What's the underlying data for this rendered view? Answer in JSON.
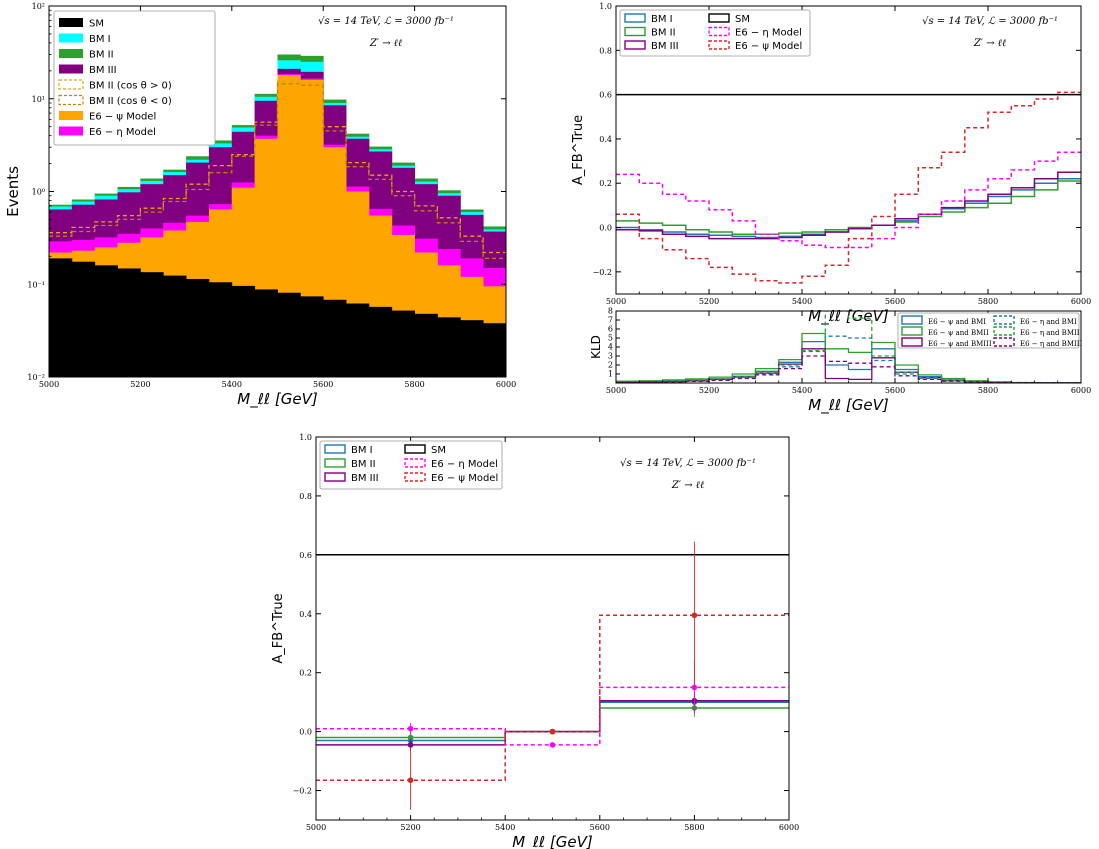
{
  "chart_data": [
    {
      "id": "events",
      "type": "bar",
      "stacked": true,
      "yscale": "log",
      "xlim": [
        5000,
        6000
      ],
      "ylim": [
        0.01,
        100
      ],
      "xlabel": "M_ℓℓ [GeV]",
      "ylabel": "Events",
      "annotation": [
        "√s = 14 TeV, ℒ = 3000 fb⁻¹",
        "Z′ → ℓℓ"
      ],
      "x_ticks": [
        "5000",
        "5200",
        "5400",
        "5600",
        "5800",
        "6000"
      ],
      "y_ticks": [
        "10⁻²",
        "10⁻¹",
        "10⁰",
        "10¹",
        "10²"
      ],
      "legend_position": "top-left",
      "bin_edges": [
        5000,
        5050,
        5100,
        5150,
        5200,
        5250,
        5300,
        5350,
        5400,
        5450,
        5500,
        5550,
        5600,
        5650,
        5700,
        5750,
        5800,
        5850,
        5900,
        5950,
        6000
      ],
      "series": [
        {
          "name": "SM",
          "color": "#000000",
          "cumulative": [
            0.19,
            0.175,
            0.16,
            0.148,
            0.135,
            0.124,
            0.114,
            0.105,
            0.096,
            0.088,
            0.081,
            0.074,
            0.068,
            0.062,
            0.057,
            0.052,
            0.048,
            0.044,
            0.041,
            0.038
          ]
        },
        {
          "name": "E6 − ψ Model",
          "color": "#ffa500",
          "cumulative": [
            0.22,
            0.23,
            0.25,
            0.28,
            0.32,
            0.38,
            0.47,
            0.64,
            1.1,
            3.7,
            18,
            16,
            3.0,
            1.0,
            0.55,
            0.34,
            0.22,
            0.16,
            0.12,
            0.095
          ]
        },
        {
          "name": "E6 − η Model",
          "color": "#ff00ff",
          "cumulative": [
            0.29,
            0.3,
            0.32,
            0.35,
            0.4,
            0.46,
            0.55,
            0.73,
            1.25,
            4.0,
            18.5,
            16.5,
            3.2,
            1.13,
            0.65,
            0.43,
            0.31,
            0.24,
            0.19,
            0.15
          ]
        },
        {
          "name": "BM III",
          "color": "#800080",
          "cumulative": [
            0.64,
            0.72,
            0.82,
            0.98,
            1.2,
            1.5,
            2.05,
            3.0,
            4.4,
            9.5,
            21,
            19.5,
            8.5,
            3.7,
            2.7,
            1.8,
            1.2,
            0.9,
            0.56,
            0.37
          ]
        },
        {
          "name": "BM I",
          "color": "#00ffff",
          "cumulative": [
            0.69,
            0.78,
            0.9,
            1.06,
            1.3,
            1.62,
            2.2,
            3.3,
            4.9,
            10.5,
            26,
            25,
            9.0,
            3.9,
            2.85,
            1.9,
            1.28,
            0.96,
            0.6,
            0.39
          ]
        },
        {
          "name": "BM II",
          "color": "#2ca02c",
          "cumulative": [
            0.72,
            0.82,
            0.95,
            1.12,
            1.38,
            1.72,
            2.4,
            3.55,
            5.2,
            11.3,
            30,
            29,
            9.8,
            4.2,
            3.05,
            2.05,
            1.38,
            1.03,
            0.64,
            0.42
          ]
        }
      ],
      "dashed_series": [
        {
          "name": "BM II (cos θ > 0)",
          "color": "#e8a020",
          "values": [
            0.36,
            0.41,
            0.47,
            0.55,
            0.66,
            0.84,
            1.2,
            1.9,
            2.5,
            5.6,
            15.5,
            15,
            5.0,
            2.05,
            1.5,
            1.0,
            0.7,
            0.52,
            0.33,
            0.22
          ]
        },
        {
          "name": "BM II (cos θ < 0)",
          "color": "#b8860b",
          "values": [
            0.33,
            0.37,
            0.43,
            0.5,
            0.6,
            0.78,
            1.05,
            1.6,
            2.4,
            5.2,
            14.5,
            14,
            4.5,
            1.85,
            1.35,
            0.9,
            0.62,
            0.46,
            0.29,
            0.19
          ]
        }
      ]
    },
    {
      "id": "afb",
      "type": "line",
      "step": true,
      "xlim": [
        5000,
        6000
      ],
      "ylim": [
        -0.3,
        1.0
      ],
      "xlabel": "M_ℓℓ [GeV]",
      "ylabel": "A_FB^True",
      "annotation": [
        "√s = 14 TeV, ℒ = 3000 fb⁻¹",
        "Z′ → ℓℓ"
      ],
      "x_ticks": [
        "5000",
        "5200",
        "5400",
        "5600",
        "5800",
        "6000"
      ],
      "y_ticks": [
        "−0.2",
        "0.0",
        "0.2",
        "0.4",
        "0.6",
        "0.8",
        "1.0"
      ],
      "legend_position": "top-left",
      "bin_edges": [
        5000,
        5050,
        5100,
        5150,
        5200,
        5250,
        5300,
        5350,
        5400,
        5450,
        5500,
        5550,
        5600,
        5650,
        5700,
        5750,
        5800,
        5850,
        5900,
        5950,
        6000
      ],
      "series": [
        {
          "name": "BM I",
          "color": "#1f77b4",
          "dashed": false,
          "values": [
            0.0,
            -0.01,
            -0.02,
            -0.03,
            -0.035,
            -0.04,
            -0.045,
            -0.04,
            -0.03,
            -0.02,
            -0.005,
            0.01,
            0.03,
            0.06,
            0.085,
            0.11,
            0.14,
            0.17,
            0.2,
            0.22
          ]
        },
        {
          "name": "BM II",
          "color": "#2ca02c",
          "dashed": false,
          "values": [
            0.03,
            0.02,
            0.01,
            -0.01,
            -0.02,
            -0.03,
            -0.03,
            -0.025,
            -0.02,
            -0.01,
            0.0,
            0.01,
            0.025,
            0.05,
            0.07,
            0.09,
            0.11,
            0.14,
            0.17,
            0.21
          ]
        },
        {
          "name": "BM III",
          "color": "#800080",
          "dashed": false,
          "values": [
            -0.01,
            -0.015,
            -0.03,
            -0.04,
            -0.05,
            -0.05,
            -0.05,
            -0.045,
            -0.035,
            -0.02,
            -0.005,
            0.01,
            0.04,
            0.06,
            0.09,
            0.12,
            0.15,
            0.18,
            0.22,
            0.25
          ]
        },
        {
          "name": "SM",
          "color": "#000000",
          "dashed": false,
          "values": [
            0.6,
            0.6,
            0.6,
            0.6,
            0.6,
            0.6,
            0.6,
            0.6,
            0.6,
            0.6,
            0.6,
            0.6,
            0.6,
            0.6,
            0.6,
            0.6,
            0.6,
            0.6,
            0.6,
            0.6
          ]
        },
        {
          "name": "E6 − η Model",
          "color": "#ff00ff",
          "dashed": true,
          "values": [
            0.24,
            0.2,
            0.15,
            0.12,
            0.08,
            0.03,
            -0.03,
            -0.06,
            -0.08,
            -0.09,
            -0.09,
            -0.05,
            0.0,
            0.06,
            0.12,
            0.17,
            0.22,
            0.26,
            0.3,
            0.34
          ]
        },
        {
          "name": "E6 − ψ Model",
          "color": "#d62728",
          "dashed": true,
          "values": [
            0.06,
            -0.05,
            -0.1,
            -0.14,
            -0.18,
            -0.21,
            -0.24,
            -0.25,
            -0.22,
            -0.17,
            -0.05,
            0.05,
            0.15,
            0.27,
            0.34,
            0.45,
            0.52,
            0.55,
            0.58,
            0.61
          ]
        }
      ]
    },
    {
      "id": "kld",
      "type": "line",
      "step": true,
      "xlim": [
        5000,
        6000
      ],
      "ylim": [
        0,
        8
      ],
      "xlabel": "M_ℓℓ [GeV]",
      "ylabel": "KLD",
      "x_ticks": [
        "5000",
        "5200",
        "5400",
        "5600",
        "5800",
        "6000"
      ],
      "y_ticks": [
        "1",
        "2",
        "3",
        "4",
        "5",
        "6",
        "7",
        "8"
      ],
      "legend_position": "top-right",
      "bin_edges": [
        5000,
        5050,
        5100,
        5150,
        5200,
        5250,
        5300,
        5350,
        5400,
        5450,
        5500,
        5550,
        5600,
        5650,
        5700,
        5750,
        5800,
        5850,
        5900,
        5950,
        6000
      ],
      "series": [
        {
          "name": "E6 − ψ and BMI",
          "color": "#1f77b4",
          "dashed": false,
          "values": [
            0.1,
            0.15,
            0.2,
            0.3,
            0.45,
            0.75,
            1.3,
            2.3,
            4.6,
            2.0,
            1.5,
            3.8,
            1.5,
            0.7,
            0.35,
            0.2,
            0.1,
            0.05,
            0.02,
            0.01
          ]
        },
        {
          "name": "E6 − ψ and BMII",
          "color": "#2ca02c",
          "dashed": false,
          "values": [
            0.2,
            0.25,
            0.35,
            0.45,
            0.65,
            1.0,
            1.6,
            2.6,
            5.5,
            3.8,
            3.4,
            4.5,
            2.0,
            0.9,
            0.5,
            0.25,
            0.12,
            0.06,
            0.03,
            0.01
          ]
        },
        {
          "name": "E6 − ψ and BMIII",
          "color": "#800080",
          "dashed": false,
          "values": [
            0.08,
            0.12,
            0.16,
            0.25,
            0.4,
            0.65,
            1.1,
            2.1,
            3.8,
            0.5,
            0.4,
            2.8,
            1.2,
            0.6,
            0.3,
            0.15,
            0.08,
            0.04,
            0.02,
            0.01
          ]
        },
        {
          "name": "E6 − η and BMI",
          "color": "#1f77b4",
          "dashed": true,
          "values": [
            0.05,
            0.1,
            0.15,
            0.22,
            0.35,
            0.6,
            1.0,
            1.8,
            3.5,
            5.2,
            5.0,
            2.5,
            1.0,
            0.5,
            0.25,
            0.12,
            0.06,
            0.03,
            0.01,
            0.01
          ]
        },
        {
          "name": "E6 − η and BMII",
          "color": "#2ca02c",
          "dashed": true,
          "values": [
            0.08,
            0.12,
            0.2,
            0.3,
            0.45,
            0.7,
            1.2,
            2.0,
            3.6,
            8.0,
            7.2,
            3.0,
            1.2,
            0.6,
            0.3,
            0.15,
            0.07,
            0.03,
            0.02,
            0.01
          ]
        },
        {
          "name": "E6 − η and BMIII",
          "color": "#800080",
          "dashed": true,
          "values": [
            0.04,
            0.08,
            0.12,
            0.18,
            0.3,
            0.5,
            0.9,
            1.6,
            3.0,
            2.4,
            2.2,
            1.8,
            0.8,
            0.4,
            0.2,
            0.1,
            0.05,
            0.02,
            0.01,
            0.01
          ]
        }
      ]
    },
    {
      "id": "afb_wide",
      "type": "line",
      "step": true,
      "error_bars": true,
      "xlim": [
        5000,
        6000
      ],
      "ylim": [
        -0.3,
        1.0
      ],
      "xlabel": "M_ℓℓ [GeV]",
      "ylabel": "A_FB^True",
      "annotation": [
        "√s = 14 TeV, ℒ = 3000 fb⁻¹",
        "Z′ → ℓℓ"
      ],
      "x_ticks": [
        "5000",
        "5200",
        "5400",
        "5600",
        "5800",
        "6000"
      ],
      "y_ticks": [
        "−0.2",
        "0.0",
        "0.2",
        "0.4",
        "0.6",
        "0.8",
        "1.0"
      ],
      "legend_position": "top-left",
      "bin_edges": [
        5000,
        5400,
        5600,
        6000
      ],
      "bin_centers": [
        5200,
        5500,
        5800
      ],
      "series": [
        {
          "name": "BM I",
          "color": "#1f77b4",
          "dashed": false,
          "values": [
            -0.03,
            0.0,
            0.1
          ],
          "errors": [
            0.02,
            0.0,
            0.03
          ]
        },
        {
          "name": "BM II",
          "color": "#2ca02c",
          "dashed": false,
          "values": [
            -0.02,
            0.0,
            0.08
          ],
          "errors": [
            0.02,
            0.0,
            0.03
          ]
        },
        {
          "name": "BM III",
          "color": "#800080",
          "dashed": false,
          "values": [
            -0.045,
            0.0,
            0.105
          ],
          "errors": [
            0.02,
            0.0,
            0.03
          ]
        },
        {
          "name": "SM",
          "color": "#000000",
          "dashed": false,
          "values": [
            0.6,
            0.6,
            0.6
          ],
          "errors": null
        },
        {
          "name": "E6 − η Model",
          "color": "#ff00ff",
          "dashed": true,
          "values": [
            0.01,
            -0.045,
            0.15
          ],
          "errors": [
            0.02,
            0.0,
            0.09
          ]
        },
        {
          "name": "E6 − ψ Model",
          "color": "#d62728",
          "dashed": true,
          "values": [
            -0.165,
            0.0,
            0.395
          ],
          "errors": [
            0.1,
            0.0,
            0.25
          ]
        }
      ]
    }
  ]
}
